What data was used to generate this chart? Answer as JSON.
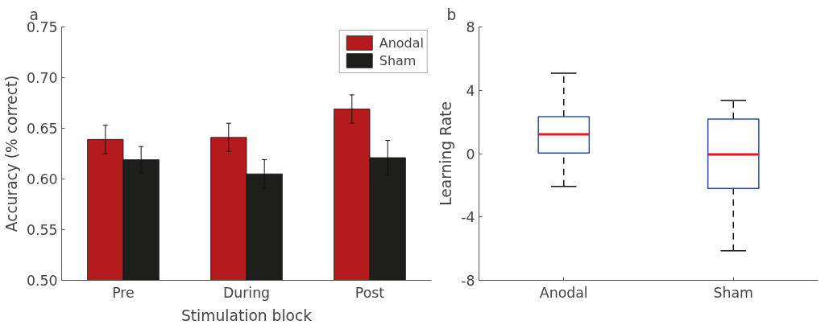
{
  "chart_data": [
    {
      "type": "bar",
      "title": "a",
      "xlabel": "Stimulation block",
      "ylabel": "Accuracy (% correct)",
      "categories": [
        "Pre",
        "During",
        "Post"
      ],
      "series": [
        {
          "name": "Anodal",
          "color": "#b51a1c",
          "values": [
            0.639,
            0.641,
            0.669
          ],
          "errors": [
            0.014,
            0.014,
            0.014
          ]
        },
        {
          "name": "Sham",
          "color": "#1e1e1c",
          "values": [
            0.619,
            0.605,
            0.621
          ],
          "errors": [
            0.013,
            0.014,
            0.017
          ]
        }
      ],
      "ylim": [
        0.5,
        0.75
      ],
      "yticks": [
        {
          "value": 0.5,
          "label": "0.50"
        },
        0.55,
        {
          "value": 0.6,
          "label": "0.60"
        },
        0.65,
        {
          "value": 0.7,
          "label": "0.70"
        },
        0.75
      ],
      "grid": false,
      "legend": "top right"
    },
    {
      "type": "box",
      "title": "b",
      "ylabel": "Learning Rate",
      "categories": [
        "Anodal",
        "Sham"
      ],
      "series": [
        {
          "color": "#2d4ea0",
          "boxes": [
            {
              "low": -2.07,
              "q1": 0.04,
              "median": 1.22,
              "q3": 2.34,
              "high": 5.08
            },
            {
              "low": -6.13,
              "q1": -2.2,
              "median": -0.05,
              "q3": 2.18,
              "high": 3.36
            }
          ]
        }
      ],
      "ylim": [
        -8,
        8
      ],
      "yticks": [
        8,
        4,
        0,
        -4,
        -8
      ],
      "grid": false,
      "line_style": "dashed"
    }
  ]
}
